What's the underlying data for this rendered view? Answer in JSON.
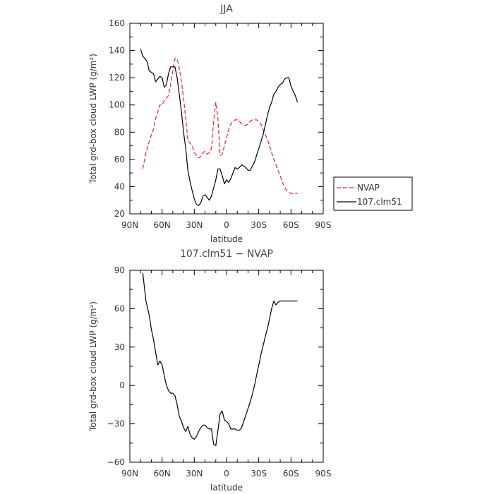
{
  "chart_data": [
    {
      "type": "line",
      "title": "JJA",
      "xlabel": "latitude",
      "ylabel": "Total grd-box cloud LWP (g/m²)",
      "xlim": [
        90,
        -90
      ],
      "ylim": [
        20,
        160
      ],
      "x_ticks": [
        90,
        60,
        30,
        0,
        -30,
        -60,
        -90
      ],
      "x_tick_labels": [
        "90N",
        "60N",
        "30N",
        "0",
        "30S",
        "60S",
        "90S"
      ],
      "y_ticks": [
        20,
        40,
        60,
        80,
        100,
        120,
        140,
        160
      ],
      "y_tick_labels": [
        "20",
        "40",
        "60",
        "80",
        "100",
        "120",
        "140",
        "160"
      ],
      "grid": false,
      "legend": "right-outside",
      "series": [
        {
          "name": "NVAP",
          "color": "#e8272a",
          "dash": "dashed",
          "x": [
            78,
            75,
            72,
            70,
            68,
            66,
            64,
            62,
            60,
            58,
            56,
            54,
            52,
            50,
            48,
            46,
            44,
            42,
            40,
            38,
            36,
            34,
            32,
            30,
            28,
            26,
            24,
            22,
            20,
            18,
            16,
            14,
            12,
            10,
            8,
            6,
            4,
            2,
            0,
            -2,
            -4,
            -6,
            -8,
            -10,
            -12,
            -14,
            -16,
            -18,
            -20,
            -22,
            -24,
            -26,
            -28,
            -30,
            -32,
            -34,
            -36,
            -38,
            -40,
            -42,
            -44,
            -46,
            -48,
            -50,
            -52,
            -54,
            -56,
            -58,
            -60,
            -62,
            -64,
            -66
          ],
          "values": [
            53,
            65,
            73,
            78,
            82,
            90,
            95,
            100,
            100,
            103,
            105,
            107,
            115,
            125,
            134,
            134,
            127,
            117,
            105,
            90,
            74,
            72,
            70,
            65,
            63,
            61,
            62,
            65,
            66,
            64,
            65,
            68,
            88,
            102,
            90,
            63,
            64,
            70,
            76,
            82,
            86,
            88,
            89,
            89,
            88,
            86,
            85,
            85,
            86,
            88,
            89,
            89,
            89,
            88,
            86,
            82,
            78,
            75,
            70,
            65,
            60,
            56,
            52,
            48,
            43,
            40,
            37,
            36,
            35,
            35,
            35,
            35
          ]
        },
        {
          "name": "107.clm51",
          "color": "#000000",
          "dash": "solid",
          "x": [
            80,
            78,
            76,
            74,
            72,
            70,
            68,
            66,
            64,
            62,
            60,
            58,
            56,
            54,
            52,
            50,
            48,
            46,
            44,
            42,
            40,
            38,
            36,
            34,
            32,
            30,
            28,
            26,
            24,
            22,
            20,
            18,
            16,
            14,
            12,
            10,
            8,
            6,
            4,
            2,
            0,
            -2,
            -4,
            -6,
            -8,
            -10,
            -12,
            -14,
            -16,
            -18,
            -20,
            -22,
            -24,
            -26,
            -28,
            -30,
            -32,
            -34,
            -36,
            -38,
            -40,
            -42,
            -44,
            -46,
            -48,
            -50,
            -52,
            -54,
            -56,
            -58,
            -60,
            -62,
            -64,
            -66
          ],
          "values": [
            141,
            136,
            134,
            132,
            125,
            124,
            123,
            117,
            119,
            121,
            120,
            113,
            115,
            123,
            128,
            128,
            128,
            120,
            108,
            95,
            80,
            68,
            52,
            44,
            37,
            31,
            27,
            26,
            28,
            33,
            34,
            32,
            30,
            33,
            39,
            45,
            53,
            53,
            48,
            42,
            45,
            43,
            46,
            50,
            54,
            53,
            54,
            56,
            55,
            54,
            52,
            52,
            55,
            58,
            63,
            68,
            73,
            78,
            85,
            92,
            98,
            102,
            108,
            110,
            113,
            115,
            116,
            119,
            120,
            120,
            114,
            110,
            107,
            102
          ]
        }
      ]
    },
    {
      "type": "line",
      "title": "107.clm51 − NVAP",
      "xlabel": "latitude",
      "ylabel": "Total grd-box cloud LWP (g/m²)",
      "xlim": [
        90,
        -90
      ],
      "ylim": [
        -60,
        90
      ],
      "x_ticks": [
        90,
        60,
        30,
        0,
        -30,
        -60,
        -90
      ],
      "x_tick_labels": [
        "90N",
        "60N",
        "30N",
        "0",
        "30S",
        "60S",
        "90S"
      ],
      "y_ticks": [
        -60,
        -30,
        0,
        30,
        60,
        90
      ],
      "y_tick_labels": [
        "−60",
        "−30",
        "0",
        "30",
        "60",
        "90"
      ],
      "grid": false,
      "legend": "none",
      "series": [
        {
          "color": "#000000",
          "dash": "solid",
          "x": [
            78,
            75,
            72,
            70,
            68,
            66,
            64,
            62,
            60,
            58,
            56,
            54,
            52,
            50,
            48,
            46,
            44,
            42,
            40,
            38,
            36,
            34,
            32,
            30,
            28,
            26,
            24,
            22,
            20,
            18,
            16,
            14,
            12,
            10,
            8,
            6,
            4,
            2,
            0,
            -2,
            -4,
            -6,
            -8,
            -10,
            -12,
            -14,
            -16,
            -18,
            -20,
            -22,
            -24,
            -26,
            -28,
            -30,
            -32,
            -34,
            -36,
            -38,
            -40,
            -42,
            -44,
            -46,
            -48,
            -50,
            -52,
            -54,
            -56,
            -58,
            -60,
            -62,
            -64,
            -66
          ],
          "values": [
            88,
            66,
            55,
            44,
            36,
            26,
            16,
            19,
            16,
            8,
            0,
            -4,
            -6,
            -6,
            -8,
            -15,
            -24,
            -28,
            -33,
            -36,
            -32,
            -38,
            -41,
            -42,
            -40,
            -36,
            -33,
            -31,
            -31,
            -33,
            -34,
            -34,
            -46,
            -47,
            -35,
            -22,
            -20,
            -27,
            -28,
            -30,
            -34,
            -34,
            -34,
            -35,
            -35,
            -33,
            -28,
            -23,
            -18,
            -13,
            -7,
            0,
            8,
            16,
            24,
            31,
            38,
            44,
            52,
            60,
            66,
            63,
            65,
            66,
            66,
            66,
            66,
            66,
            66,
            66,
            66,
            66
          ]
        }
      ]
    }
  ]
}
